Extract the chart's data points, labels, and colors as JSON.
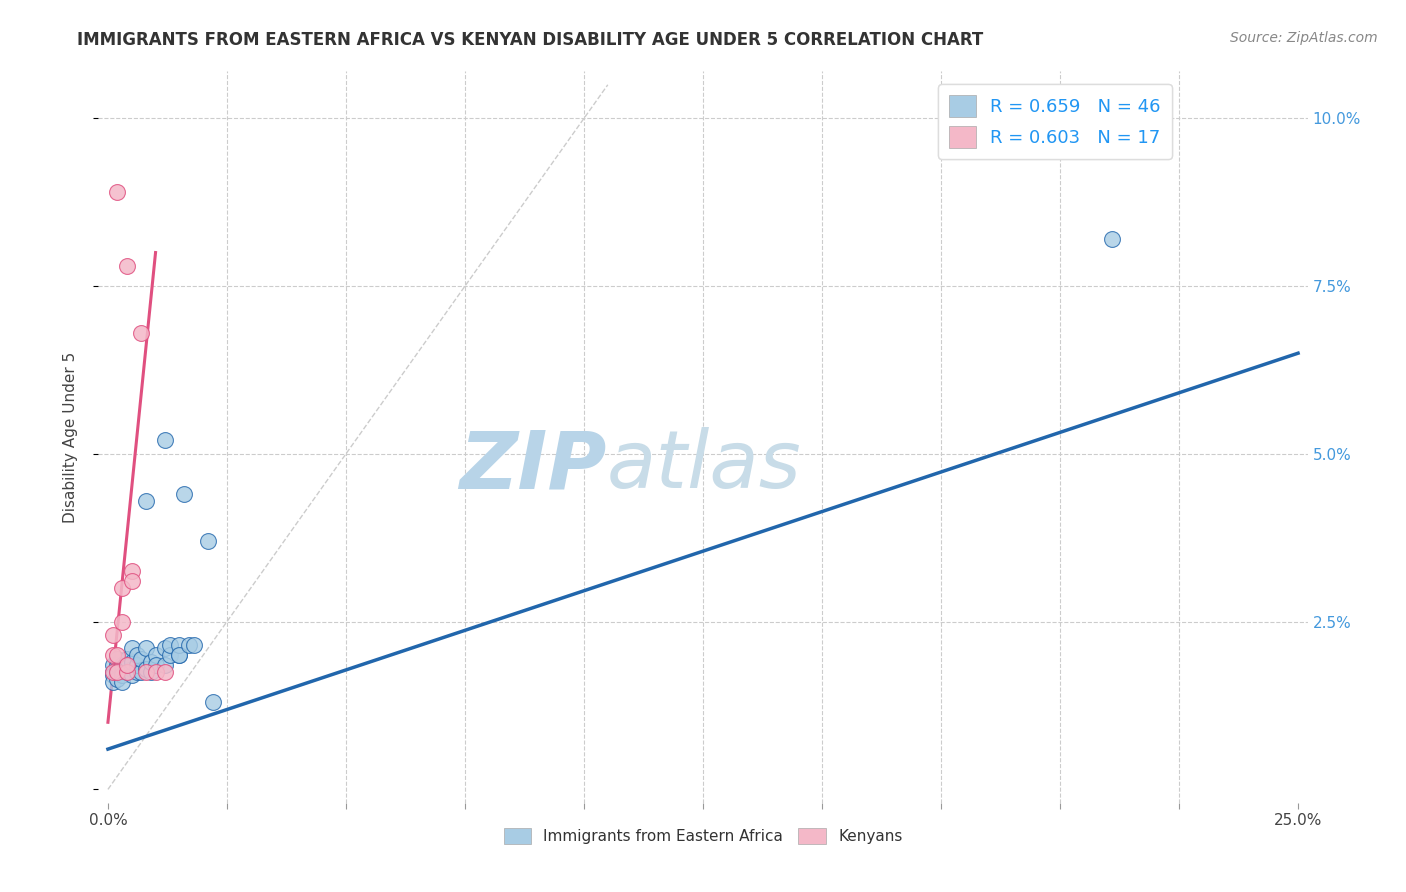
{
  "title": "IMMIGRANTS FROM EASTERN AFRICA VS KENYAN DISABILITY AGE UNDER 5 CORRELATION CHART",
  "source": "Source: ZipAtlas.com",
  "ylabel": "Disability Age Under 5",
  "legend_label1": "Immigrants from Eastern Africa",
  "legend_label2": "Kenyans",
  "legend_R1": "R = 0.659",
  "legend_N1": "N = 46",
  "legend_R2": "R = 0.603",
  "legend_N2": "N = 17",
  "color_blue": "#a8cce4",
  "color_pink": "#f4b8c8",
  "color_blue_line": "#2166ac",
  "color_pink_line": "#e05080",
  "color_ref_line": "#cccccc",
  "color_watermark": "#ddeef8",
  "color_grid": "#cccccc",
  "background": "#ffffff",
  "blue_points": [
    [
      0.001,
      0.0175
    ],
    [
      0.001,
      0.0185
    ],
    [
      0.001,
      0.017
    ],
    [
      0.001,
      0.016
    ],
    [
      0.002,
      0.018
    ],
    [
      0.002,
      0.0175
    ],
    [
      0.002,
      0.0165
    ],
    [
      0.002,
      0.0185
    ],
    [
      0.002,
      0.0195
    ],
    [
      0.003,
      0.0175
    ],
    [
      0.003,
      0.0185
    ],
    [
      0.003,
      0.017
    ],
    [
      0.003,
      0.016
    ],
    [
      0.004,
      0.0175
    ],
    [
      0.004,
      0.0185
    ],
    [
      0.004,
      0.0195
    ],
    [
      0.005,
      0.018
    ],
    [
      0.005,
      0.017
    ],
    [
      0.005,
      0.019
    ],
    [
      0.005,
      0.021
    ],
    [
      0.006,
      0.0175
    ],
    [
      0.006,
      0.0185
    ],
    [
      0.006,
      0.02
    ],
    [
      0.007,
      0.0175
    ],
    [
      0.007,
      0.0195
    ],
    [
      0.008,
      0.018
    ],
    [
      0.008,
      0.021
    ],
    [
      0.009,
      0.0175
    ],
    [
      0.009,
      0.019
    ],
    [
      0.01,
      0.02
    ],
    [
      0.01,
      0.0185
    ],
    [
      0.012,
      0.0185
    ],
    [
      0.012,
      0.021
    ],
    [
      0.013,
      0.02
    ],
    [
      0.013,
      0.0215
    ],
    [
      0.015,
      0.02
    ],
    [
      0.015,
      0.0215
    ],
    [
      0.015,
      0.02
    ],
    [
      0.017,
      0.0215
    ],
    [
      0.018,
      0.0215
    ],
    [
      0.008,
      0.043
    ],
    [
      0.012,
      0.052
    ],
    [
      0.016,
      0.044
    ],
    [
      0.021,
      0.037
    ],
    [
      0.022,
      0.013
    ],
    [
      0.211,
      0.082
    ]
  ],
  "pink_points": [
    [
      0.001,
      0.0175
    ],
    [
      0.001,
      0.02
    ],
    [
      0.001,
      0.023
    ],
    [
      0.002,
      0.0175
    ],
    [
      0.002,
      0.02
    ],
    [
      0.003,
      0.025
    ],
    [
      0.003,
      0.03
    ],
    [
      0.004,
      0.0175
    ],
    [
      0.004,
      0.0185
    ],
    [
      0.005,
      0.0325
    ],
    [
      0.005,
      0.031
    ],
    [
      0.007,
      0.068
    ],
    [
      0.008,
      0.0175
    ],
    [
      0.01,
      0.0175
    ],
    [
      0.012,
      0.0175
    ],
    [
      0.002,
      0.089
    ],
    [
      0.004,
      0.078
    ]
  ],
  "blue_line_x": [
    0.0,
    0.25
  ],
  "blue_line_y": [
    0.006,
    0.065
  ],
  "pink_line_x": [
    0.0,
    0.01
  ],
  "pink_line_y": [
    0.01,
    0.08
  ],
  "ref_line_x": [
    0.0,
    0.105
  ],
  "ref_line_y": [
    0.0,
    0.105
  ],
  "xlim": [
    -0.002,
    0.252
  ],
  "ylim": [
    -0.002,
    0.107
  ],
  "x_ticks_minor": [
    0.025,
    0.05,
    0.075,
    0.1,
    0.125,
    0.15,
    0.175,
    0.2,
    0.225
  ],
  "y_ticks_grid": [
    0.025,
    0.05,
    0.075,
    0.1
  ],
  "x_ticks_labeled": [
    0.0,
    0.25
  ],
  "y_ticks_right": [
    0.025,
    0.05,
    0.075,
    0.1
  ]
}
